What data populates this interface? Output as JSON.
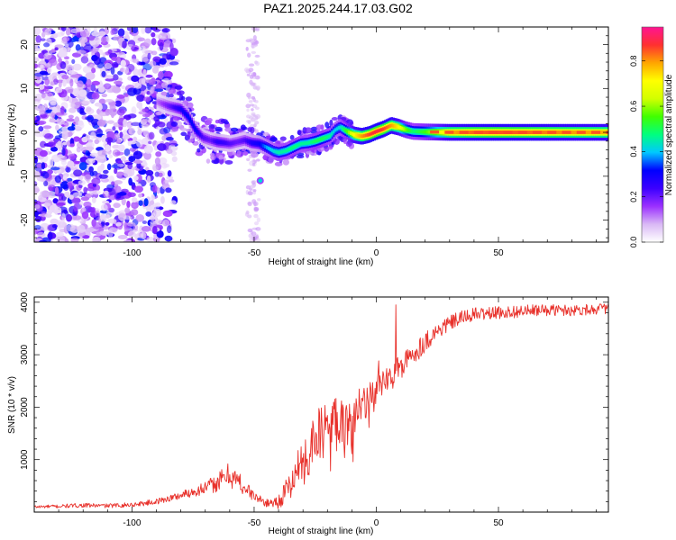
{
  "title": "PAZ1.2025.244.17.03.G02",
  "chart_data": [
    {
      "type": "heatmap",
      "xlabel": "Height of straight line (km)",
      "ylabel": "Frequency (Hz)",
      "xlim": [
        -140,
        95
      ],
      "ylim": [
        -25,
        24
      ],
      "x_ticks": [
        -100,
        -50,
        0,
        50
      ],
      "x_tick_labels": [
        "-100",
        "-50",
        "0",
        "50"
      ],
      "y_ticks": [
        -20,
        -10,
        0,
        10,
        20
      ],
      "y_tick_labels": [
        "-20",
        "-10",
        "0",
        "10",
        "20"
      ],
      "colorbar": {
        "label": "Normalized spectral amplitude",
        "range": [
          0,
          0.95
        ],
        "ticks": [
          0.0,
          0.2,
          0.4,
          0.6,
          0.8
        ],
        "tick_labels": [
          "0.0",
          "0.2",
          "0.4",
          "0.6",
          "0.8"
        ],
        "colors": [
          "#ffffff",
          "#d9b8f5",
          "#9b30ff",
          "#3b00ff",
          "#0000ff",
          "#00c8ff",
          "#00ff7f",
          "#40ff00",
          "#d2ff00",
          "#ffff00",
          "#ffa500",
          "#ff3030",
          "#ff1493"
        ]
      },
      "ridge": {
        "x": [
          -90,
          -85,
          -80,
          -77,
          -74,
          -71,
          -68,
          -65,
          -62,
          -60,
          -57,
          -54,
          -51,
          -48,
          -45,
          -42,
          -40,
          -37,
          -34,
          -31,
          -28,
          -25,
          -22,
          -19,
          -17,
          -15,
          -12,
          -9,
          -6,
          -3,
          0,
          3,
          6,
          9,
          12,
          15,
          20,
          30,
          40,
          50,
          60,
          70,
          80,
          95
        ],
        "freq": [
          7.0,
          6.0,
          5.3,
          3.5,
          0.5,
          -1.2,
          -1.8,
          -2.2,
          -2.4,
          -2.6,
          -2.2,
          -1.8,
          -2.4,
          -2.6,
          -3.4,
          -4.3,
          -4.6,
          -4.2,
          -3.4,
          -2.6,
          -2.4,
          -2.0,
          -1.4,
          -0.8,
          0.5,
          1.2,
          0.2,
          -0.6,
          -0.9,
          -0.5,
          0.2,
          0.8,
          1.6,
          1.2,
          0.6,
          0.2,
          0.1,
          0.0,
          0.0,
          0.0,
          0.0,
          0.0,
          0.0,
          0.0
        ],
        "amplitude": [
          0.12,
          0.2,
          0.28,
          0.32,
          0.3,
          0.22,
          0.2,
          0.26,
          0.24,
          0.22,
          0.2,
          0.22,
          0.28,
          0.3,
          0.38,
          0.42,
          0.45,
          0.46,
          0.48,
          0.46,
          0.46,
          0.5,
          0.5,
          0.46,
          0.4,
          0.42,
          0.56,
          0.72,
          0.8,
          0.86,
          0.88,
          0.86,
          0.8,
          0.72,
          0.58,
          0.48,
          0.55,
          0.78,
          0.84,
          0.85,
          0.84,
          0.82,
          0.8,
          0.78
        ]
      }
    },
    {
      "type": "line",
      "xlabel": "Height of straight line (km)",
      "ylabel": "SNR (10 * v/v)",
      "xlim": [
        -140,
        95
      ],
      "ylim": [
        0,
        4100
      ],
      "x_ticks": [
        -100,
        -50,
        0,
        50
      ],
      "x_tick_labels": [
        "-100",
        "-50",
        "0",
        "50"
      ],
      "y_ticks": [
        1000,
        2000,
        3000,
        4000
      ],
      "y_tick_labels": [
        "1000",
        "2000",
        "3000",
        "4000"
      ],
      "color": "#e8302a",
      "series": [
        {
          "name": "SNR",
          "x": [
            -140,
            -130,
            -120,
            -110,
            -100,
            -90,
            -80,
            -70,
            -65,
            -60,
            -55,
            -50,
            -45,
            -40,
            -35,
            -30,
            -25,
            -20,
            -15,
            -10,
            -5,
            0,
            5,
            10,
            15,
            20,
            25,
            30,
            35,
            40,
            50,
            60,
            70,
            80,
            95
          ],
          "y": [
            100,
            110,
            130,
            120,
            140,
            200,
            320,
            460,
            560,
            720,
            520,
            300,
            170,
            200,
            520,
            1000,
            1400,
            1600,
            1800,
            1750,
            2000,
            2300,
            2550,
            2750,
            3000,
            3250,
            3450,
            3600,
            3700,
            3770,
            3800,
            3830,
            3850,
            3850,
            3880
          ],
          "noise": [
            30,
            35,
            40,
            40,
            45,
            55,
            80,
            130,
            180,
            260,
            200,
            90,
            70,
            140,
            300,
            480,
            520,
            560,
            600,
            520,
            420,
            360,
            300,
            260,
            220,
            200,
            170,
            150,
            140,
            130,
            120,
            120,
            110,
            110,
            100
          ]
        }
      ]
    }
  ]
}
